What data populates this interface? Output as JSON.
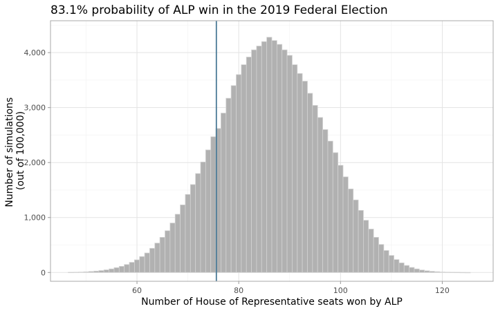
{
  "chart_data": {
    "type": "bar",
    "title": "83.1% probability of ALP win in the 2019 Federal Election",
    "xlabel": "Number of House of Representative seats won by ALP",
    "ylabel": [
      "Number of simulations",
      "(out of 100,000)"
    ],
    "xlim": [
      43,
      130
    ],
    "ylim": [
      -160,
      4580
    ],
    "xticks": [
      60,
      80,
      100,
      120
    ],
    "xtick_labels": [
      "60",
      "80",
      "100",
      "120"
    ],
    "yticks": [
      0,
      1000,
      2000,
      3000,
      4000
    ],
    "ytick_labels": [
      "0",
      "1,000",
      "2,000",
      "3,000",
      "4,000"
    ],
    "grid": true,
    "x": [
      47,
      48,
      49,
      50,
      51,
      52,
      53,
      54,
      55,
      56,
      57,
      58,
      59,
      60,
      61,
      62,
      63,
      64,
      65,
      66,
      67,
      68,
      69,
      70,
      71,
      72,
      73,
      74,
      75,
      76,
      77,
      78,
      79,
      80,
      81,
      82,
      83,
      84,
      85,
      86,
      87,
      88,
      89,
      90,
      91,
      92,
      93,
      94,
      95,
      96,
      97,
      98,
      99,
      100,
      101,
      102,
      103,
      104,
      105,
      106,
      107,
      108,
      109,
      110,
      111,
      112,
      113,
      114,
      115,
      116,
      117,
      118,
      119,
      120,
      121,
      122,
      123,
      124,
      125
    ],
    "values": [
      3,
      5,
      8,
      12,
      18,
      25,
      35,
      48,
      65,
      88,
      112,
      145,
      185,
      230,
      290,
      355,
      440,
      535,
      640,
      760,
      900,
      1060,
      1230,
      1420,
      1600,
      1800,
      2010,
      2230,
      2470,
      2620,
      2900,
      3170,
      3400,
      3600,
      3780,
      3920,
      4050,
      4120,
      4200,
      4280,
      4220,
      4150,
      4050,
      3950,
      3780,
      3620,
      3480,
      3260,
      3040,
      2820,
      2600,
      2390,
      2180,
      1950,
      1740,
      1520,
      1320,
      1130,
      950,
      790,
      640,
      510,
      400,
      310,
      235,
      175,
      128,
      92,
      65,
      45,
      31,
      21,
      14,
      9,
      6,
      4,
      3,
      2,
      1
    ],
    "vline": {
      "x": 75.6,
      "color": "#4a7a96"
    },
    "colors": {
      "bar_fill": "#b1b1b1",
      "bar_edge": "#d3d3d3"
    }
  }
}
